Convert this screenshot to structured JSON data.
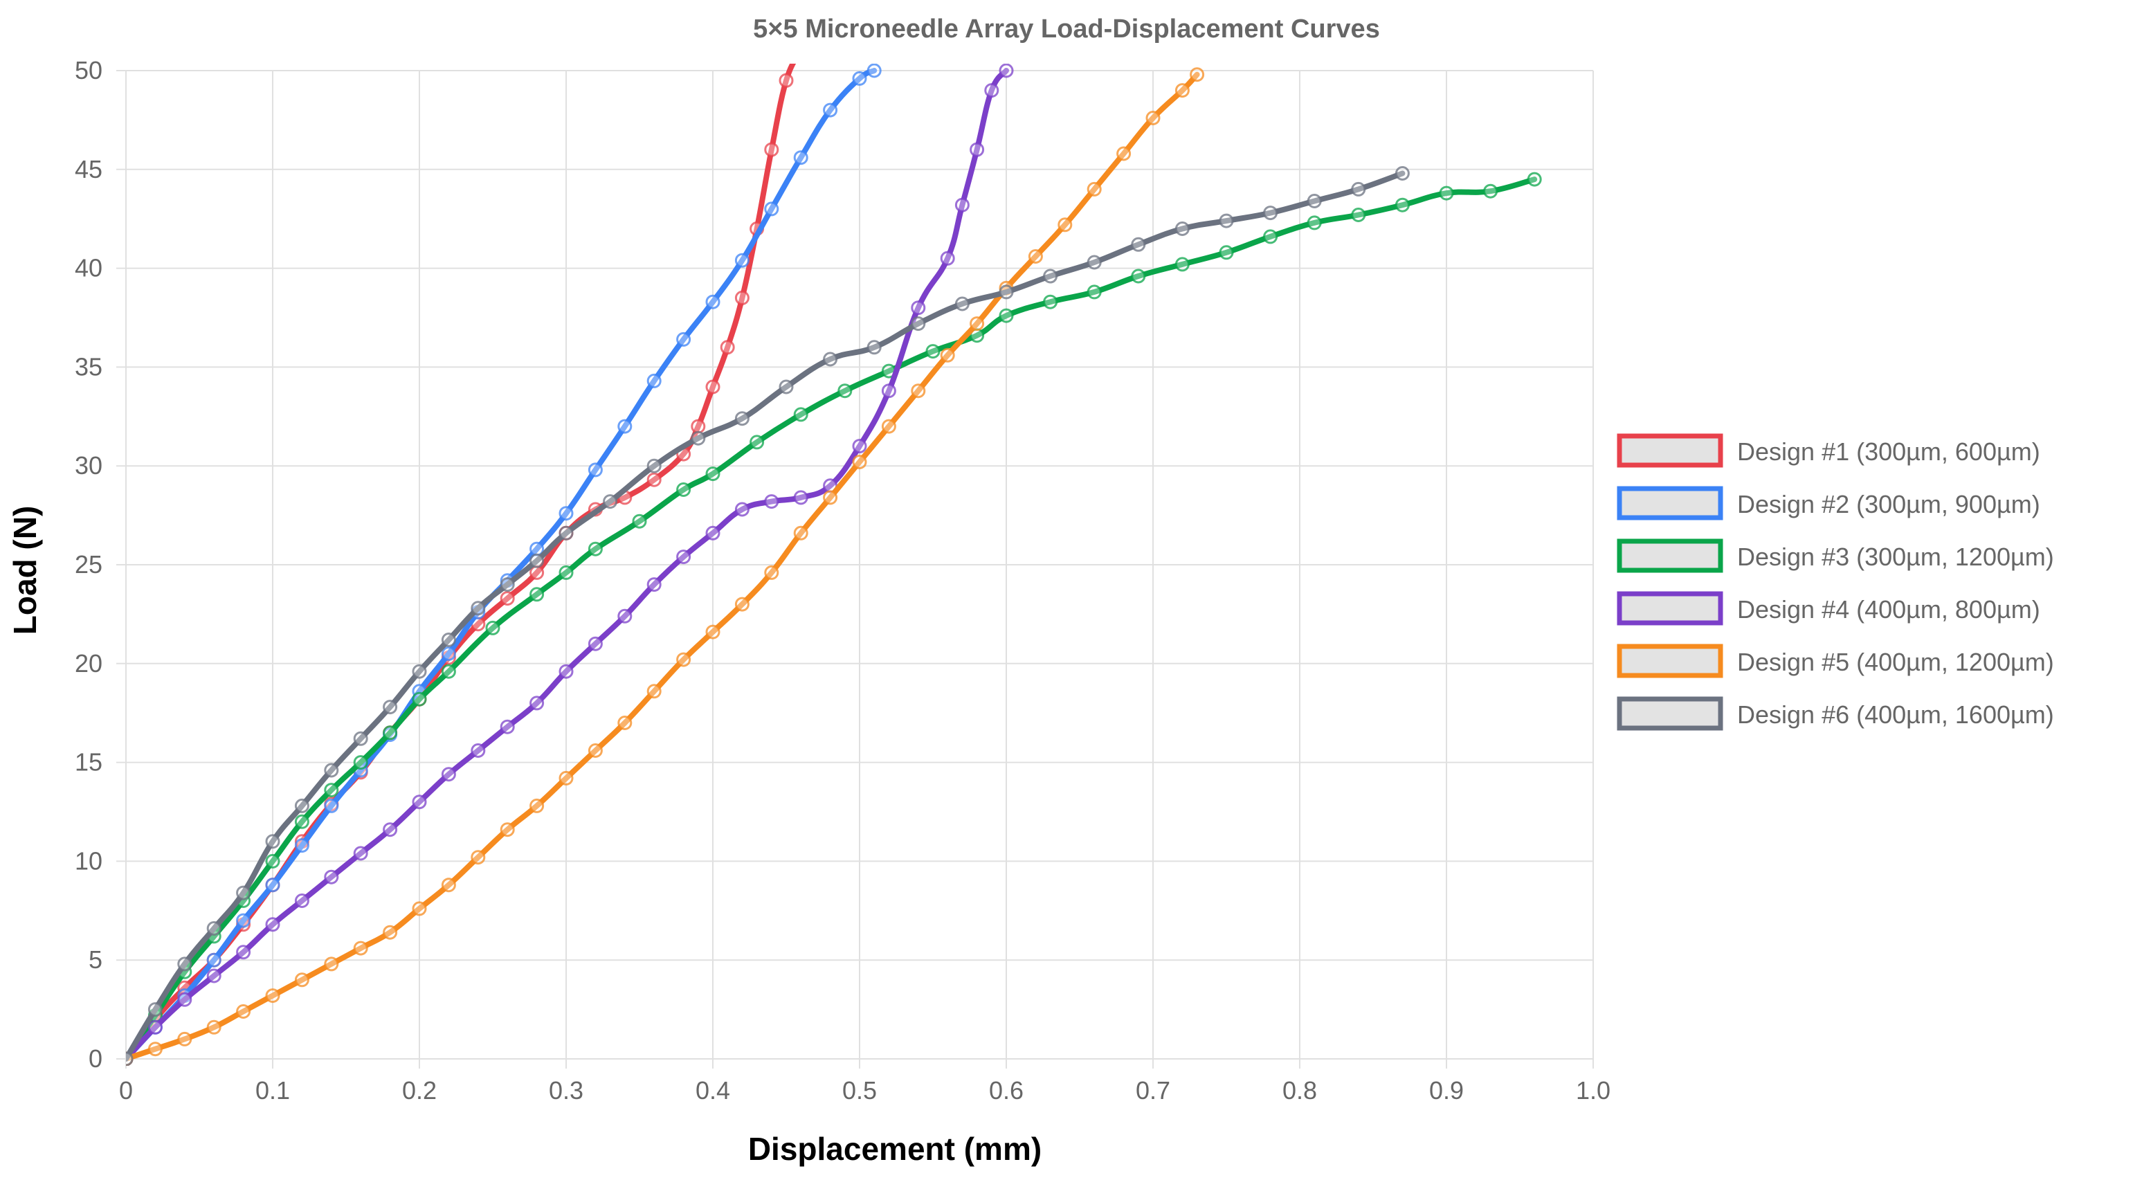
{
  "chart_data": {
    "type": "line",
    "title": "5×5 Microneedle Array Load-Displacement Curves",
    "xlabel": "Displacement (mm)",
    "ylabel": "Load (N)",
    "xlim": [
      0,
      1.0
    ],
    "ylim": [
      0,
      50
    ],
    "x_ticks": [
      "0",
      "0.1",
      "0.2",
      "0.3",
      "0.4",
      "0.5",
      "0.6",
      "0.7",
      "0.8",
      "0.9",
      "1.0"
    ],
    "y_ticks": [
      "0",
      "5",
      "10",
      "15",
      "20",
      "25",
      "30",
      "35",
      "40",
      "45",
      "50"
    ],
    "grid": true,
    "legend_position": "right",
    "series": [
      {
        "name": "Design #1 (300µm, 600µm)",
        "color": "#e8414b",
        "x": [
          0,
          0.02,
          0.04,
          0.06,
          0.08,
          0.1,
          0.12,
          0.14,
          0.16,
          0.18,
          0.2,
          0.22,
          0.24,
          0.26,
          0.28,
          0.3,
          0.32,
          0.34,
          0.36,
          0.38,
          0.39,
          0.4,
          0.41,
          0.42,
          0.43,
          0.44,
          0.45,
          0.46
        ],
        "y": [
          0,
          2.0,
          3.6,
          5.0,
          6.8,
          8.8,
          11.0,
          12.9,
          14.5,
          16.5,
          18.2,
          20.3,
          22.0,
          23.3,
          24.6,
          26.6,
          27.8,
          28.4,
          29.3,
          30.6,
          32.0,
          34.0,
          36.0,
          38.5,
          42.0,
          46.0,
          49.5,
          51.0
        ]
      },
      {
        "name": "Design #2 (300µm, 900µm)",
        "color": "#3b82f6",
        "x": [
          0,
          0.02,
          0.04,
          0.06,
          0.08,
          0.1,
          0.12,
          0.14,
          0.16,
          0.18,
          0.2,
          0.22,
          0.24,
          0.26,
          0.28,
          0.3,
          0.32,
          0.34,
          0.36,
          0.38,
          0.4,
          0.42,
          0.44,
          0.46,
          0.48,
          0.5,
          0.51
        ],
        "y": [
          0,
          1.6,
          3.2,
          5.0,
          7.0,
          8.8,
          10.8,
          12.8,
          14.6,
          16.4,
          18.6,
          20.5,
          22.6,
          24.2,
          25.8,
          27.6,
          29.8,
          32.0,
          34.3,
          36.4,
          38.3,
          40.4,
          43.0,
          45.6,
          48.0,
          49.6,
          50.0
        ]
      },
      {
        "name": "Design #3 (300µm, 1200µm)",
        "color": "#0aa54a",
        "x": [
          0,
          0.02,
          0.04,
          0.06,
          0.08,
          0.1,
          0.12,
          0.14,
          0.16,
          0.18,
          0.2,
          0.22,
          0.25,
          0.28,
          0.3,
          0.32,
          0.35,
          0.38,
          0.4,
          0.43,
          0.46,
          0.49,
          0.52,
          0.55,
          0.58,
          0.6,
          0.63,
          0.66,
          0.69,
          0.72,
          0.75,
          0.78,
          0.81,
          0.84,
          0.87,
          0.9,
          0.93,
          0.96
        ],
        "y": [
          0,
          2.2,
          4.4,
          6.2,
          8.0,
          10.0,
          12.0,
          13.6,
          15.0,
          16.5,
          18.2,
          19.6,
          21.8,
          23.5,
          24.6,
          25.8,
          27.2,
          28.8,
          29.6,
          31.2,
          32.6,
          33.8,
          34.8,
          35.8,
          36.6,
          37.6,
          38.3,
          38.8,
          39.6,
          40.2,
          40.8,
          41.6,
          42.3,
          42.7,
          43.2,
          43.8,
          43.9,
          44.5
        ]
      },
      {
        "name": "Design #4 (400µm, 800µm)",
        "color": "#7b3fc9",
        "x": [
          0,
          0.02,
          0.04,
          0.06,
          0.08,
          0.1,
          0.12,
          0.14,
          0.16,
          0.18,
          0.2,
          0.22,
          0.24,
          0.26,
          0.28,
          0.3,
          0.32,
          0.34,
          0.36,
          0.38,
          0.4,
          0.42,
          0.44,
          0.46,
          0.48,
          0.5,
          0.52,
          0.54,
          0.56,
          0.57,
          0.58,
          0.59,
          0.6
        ],
        "y": [
          0,
          1.6,
          3.0,
          4.2,
          5.4,
          6.8,
          8.0,
          9.2,
          10.4,
          11.6,
          13.0,
          14.4,
          15.6,
          16.8,
          18.0,
          19.6,
          21.0,
          22.4,
          24.0,
          25.4,
          26.6,
          27.8,
          28.2,
          28.4,
          29.0,
          31.0,
          33.8,
          38.0,
          40.5,
          43.2,
          46.0,
          49.0,
          50.0
        ]
      },
      {
        "name": "Design #5 (400µm, 1200µm)",
        "color": "#f68b1f",
        "x": [
          0,
          0.02,
          0.04,
          0.06,
          0.08,
          0.1,
          0.12,
          0.14,
          0.16,
          0.18,
          0.2,
          0.22,
          0.24,
          0.26,
          0.28,
          0.3,
          0.32,
          0.34,
          0.36,
          0.38,
          0.4,
          0.42,
          0.44,
          0.46,
          0.48,
          0.5,
          0.52,
          0.54,
          0.56,
          0.58,
          0.6,
          0.62,
          0.64,
          0.66,
          0.68,
          0.7,
          0.72,
          0.73
        ],
        "y": [
          0,
          0.5,
          1.0,
          1.6,
          2.4,
          3.2,
          4.0,
          4.8,
          5.6,
          6.4,
          7.6,
          8.8,
          10.2,
          11.6,
          12.8,
          14.2,
          15.6,
          17.0,
          18.6,
          20.2,
          21.6,
          23.0,
          24.6,
          26.6,
          28.4,
          30.2,
          32.0,
          33.8,
          35.6,
          37.2,
          39.0,
          40.6,
          42.2,
          44.0,
          45.8,
          47.6,
          49.0,
          49.8
        ]
      },
      {
        "name": "Design #6 (400µm, 1600µm)",
        "color": "#6b7280",
        "x": [
          0,
          0.02,
          0.04,
          0.06,
          0.08,
          0.1,
          0.12,
          0.14,
          0.16,
          0.18,
          0.2,
          0.22,
          0.24,
          0.26,
          0.28,
          0.3,
          0.33,
          0.36,
          0.39,
          0.42,
          0.45,
          0.48,
          0.51,
          0.54,
          0.57,
          0.6,
          0.63,
          0.66,
          0.69,
          0.72,
          0.75,
          0.78,
          0.81,
          0.84,
          0.87
        ],
        "y": [
          0,
          2.5,
          4.8,
          6.6,
          8.4,
          11.0,
          12.8,
          14.6,
          16.2,
          17.8,
          19.6,
          21.2,
          22.8,
          24.0,
          25.2,
          26.6,
          28.2,
          30.0,
          31.4,
          32.4,
          34.0,
          35.4,
          36.0,
          37.2,
          38.2,
          38.8,
          39.6,
          40.3,
          41.2,
          42.0,
          42.4,
          42.8,
          43.4,
          44.0,
          44.8
        ]
      }
    ]
  }
}
